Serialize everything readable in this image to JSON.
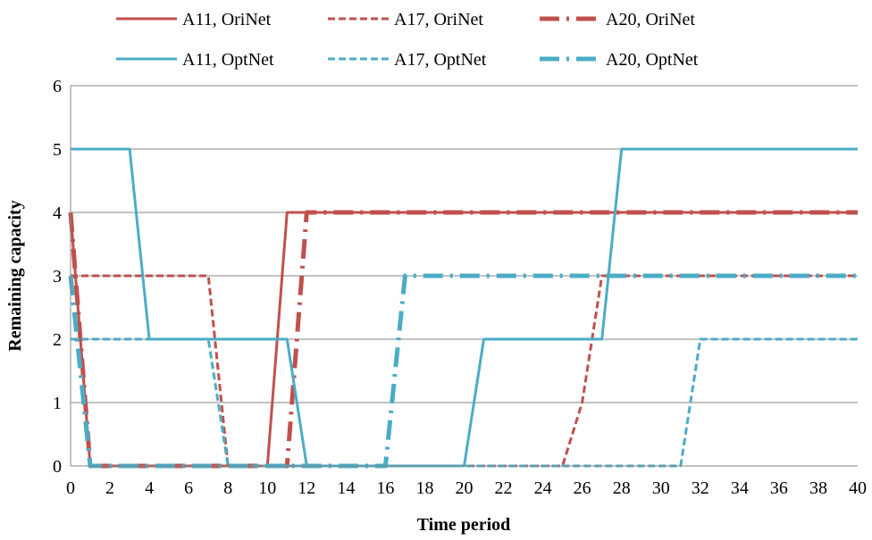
{
  "chart_data": {
    "type": "line",
    "title": "",
    "xlabel": "Time period",
    "ylabel": "Remaining capacity",
    "xlim": [
      0,
      40
    ],
    "ylim": [
      0,
      6
    ],
    "xticks": [
      0,
      2,
      4,
      6,
      8,
      10,
      12,
      14,
      16,
      18,
      20,
      22,
      24,
      26,
      28,
      30,
      32,
      34,
      36,
      38,
      40
    ],
    "yticks": [
      0,
      1,
      2,
      3,
      4,
      5,
      6
    ],
    "grid": "horizontal",
    "legend_position": "top",
    "colors": {
      "OriNet": "#c0504d",
      "OptNet": "#4bacc6"
    },
    "series": [
      {
        "name": "A11, OriNet",
        "color": "#c0504d",
        "style": "solid",
        "points": [
          [
            0,
            4
          ],
          [
            1,
            0
          ],
          [
            10,
            0
          ],
          [
            11,
            4
          ],
          [
            40,
            4
          ]
        ]
      },
      {
        "name": "A17, OriNet",
        "color": "#c0504d",
        "style": "dash",
        "points": [
          [
            0,
            3
          ],
          [
            7,
            3
          ],
          [
            8,
            0
          ],
          [
            25,
            0
          ],
          [
            26,
            1
          ],
          [
            27,
            3
          ],
          [
            40,
            3
          ]
        ]
      },
      {
        "name": "A20, OriNet",
        "color": "#c0504d",
        "style": "dashdot",
        "points": [
          [
            0,
            4
          ],
          [
            1,
            0
          ],
          [
            11,
            0
          ],
          [
            12,
            4
          ],
          [
            40,
            4
          ]
        ]
      },
      {
        "name": "A11, OptNet",
        "color": "#4bacc6",
        "style": "solid",
        "points": [
          [
            0,
            5
          ],
          [
            3,
            5
          ],
          [
            4,
            2
          ],
          [
            11,
            2
          ],
          [
            12,
            0
          ],
          [
            20,
            0
          ],
          [
            21,
            2
          ],
          [
            27,
            2
          ],
          [
            28,
            5
          ],
          [
            40,
            5
          ]
        ]
      },
      {
        "name": "A17, OptNet",
        "color": "#4bacc6",
        "style": "dash",
        "points": [
          [
            0,
            2
          ],
          [
            7,
            2
          ],
          [
            8,
            0
          ],
          [
            31,
            0
          ],
          [
            32,
            2
          ],
          [
            40,
            2
          ]
        ]
      },
      {
        "name": "A20, OptNet",
        "color": "#4bacc6",
        "style": "dashdot",
        "points": [
          [
            0,
            3
          ],
          [
            1,
            0
          ],
          [
            16,
            0
          ],
          [
            17,
            3
          ],
          [
            40,
            3
          ]
        ]
      }
    ]
  }
}
